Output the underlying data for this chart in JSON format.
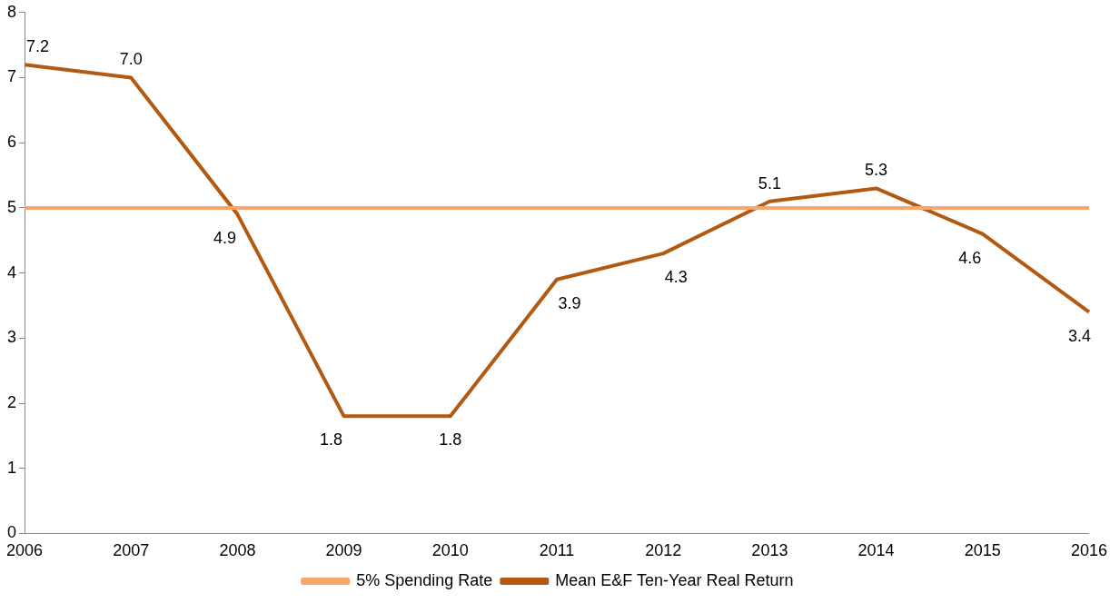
{
  "chart_data": {
    "type": "line",
    "categories": [
      "2006",
      "2007",
      "2008",
      "2009",
      "2010",
      "2011",
      "2012",
      "2013",
      "2014",
      "2015",
      "2016"
    ],
    "series": [
      {
        "name": "5% Spending Rate",
        "color": "#f9a66c",
        "values": [
          5,
          5,
          5,
          5,
          5,
          5,
          5,
          5,
          5,
          5,
          5
        ]
      },
      {
        "name": "Mean E&F Ten-Year Real Return",
        "color": "#b35a12",
        "values": [
          7.2,
          7.0,
          4.9,
          1.8,
          1.8,
          3.9,
          4.3,
          5.1,
          5.3,
          4.6,
          3.4
        ],
        "value_labels": [
          "7.2",
          "7.0",
          "4.9",
          "1.8",
          "1.8",
          "3.9",
          "4.3",
          "5.1",
          "5.3",
          "4.6",
          "3.4"
        ]
      }
    ],
    "ylim": [
      0,
      8
    ],
    "yticks": [
      0,
      1,
      2,
      3,
      4,
      5,
      6,
      7,
      8
    ],
    "grid": false,
    "legend": "bottom",
    "marker": "none"
  }
}
